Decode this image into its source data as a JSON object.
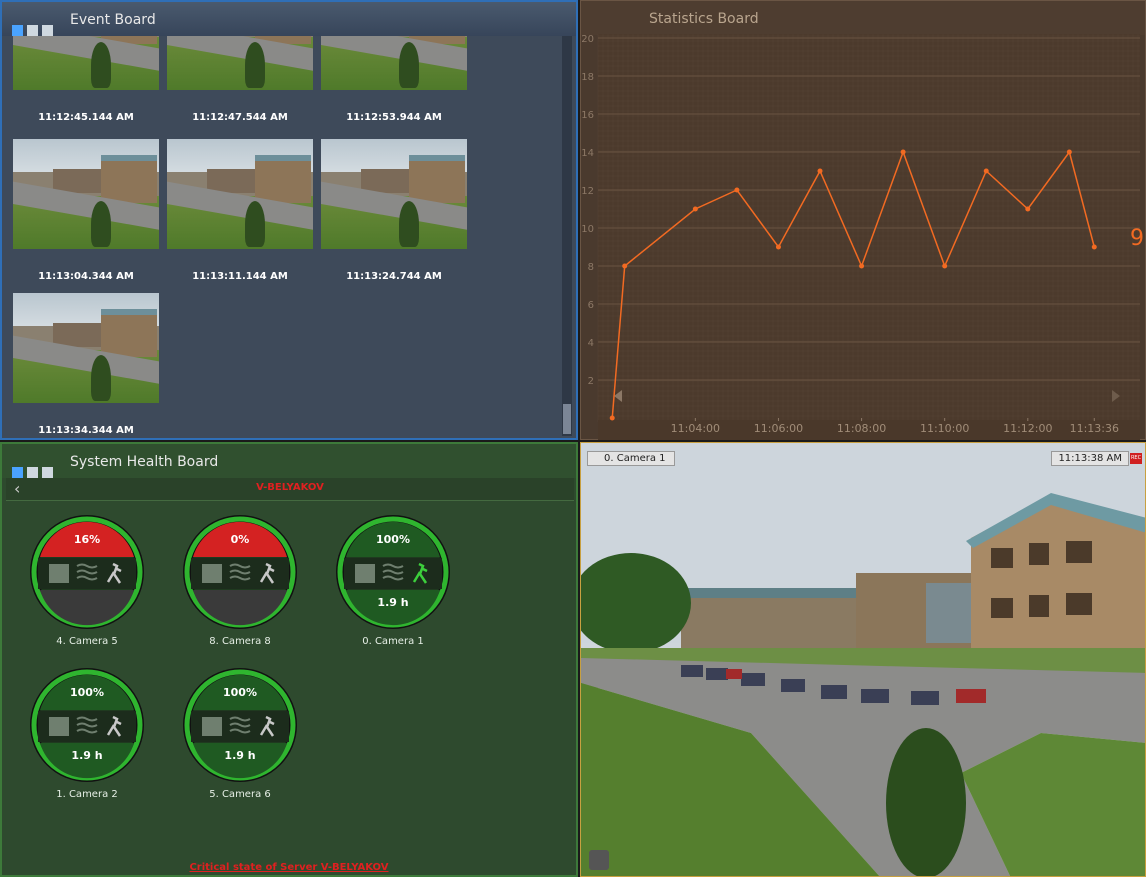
{
  "event_board": {
    "title": "Event Board",
    "events": [
      {
        "time": "11:12:45.144 AM"
      },
      {
        "time": "11:12:47.544 AM"
      },
      {
        "time": "11:12:53.944 AM"
      },
      {
        "time": "11:13:04.344 AM"
      },
      {
        "time": "11:13:11.144 AM"
      },
      {
        "time": "11:13:24.744 AM"
      },
      {
        "time": "11:13:34.344 AM"
      }
    ]
  },
  "statistics_board": {
    "title": "Statistics Board"
  },
  "chart_data": {
    "type": "line",
    "color": "#f26a22",
    "grid": true,
    "x": [
      2,
      2.3,
      4,
      5,
      6,
      7,
      8,
      9,
      10,
      11,
      12,
      13,
      13.6
    ],
    "values": [
      0,
      8,
      11,
      12,
      9,
      13,
      8,
      14,
      8,
      13,
      11,
      14,
      9
    ],
    "annotation": "9",
    "xlim": [
      1.85,
      14.7
    ],
    "xticks": [
      {
        "value": 4,
        "label": "11:04:00"
      },
      {
        "value": 6,
        "label": "11:06:00"
      },
      {
        "value": 8,
        "label": "11:08:00"
      },
      {
        "value": 10,
        "label": "11:10:00"
      },
      {
        "value": 12,
        "label": "11:12:00"
      },
      {
        "value": 13.6,
        "label": "11:13:36"
      }
    ],
    "ylim": [
      0,
      20
    ],
    "yticks": [
      2,
      4,
      6,
      8,
      10,
      12,
      14,
      16,
      18,
      20
    ]
  },
  "health_board": {
    "title": "System Health Board",
    "server": "V-BELYAKOV",
    "cameras": [
      {
        "name": "4. Camera 5",
        "percent": "16%",
        "color": "#d42222"
      },
      {
        "name": "8. Camera 8",
        "percent": "0%",
        "color": "#d42222"
      },
      {
        "name": "0. Camera 1",
        "percent": "100%",
        "uptime": "1.9 h",
        "color": "#1f5a22"
      },
      {
        "name": "1. Camera 2",
        "percent": "100%",
        "uptime": "1.9 h",
        "color": "#1f5a22"
      },
      {
        "name": "5. Camera 6",
        "percent": "100%",
        "uptime": "1.9 h",
        "color": "#1f5a22"
      }
    ],
    "footer": "Critical state of Server V-BELYAKOV"
  },
  "camera_view": {
    "name": "0. Camera 1",
    "time": "11:13:38 AM",
    "rec": "REC"
  }
}
